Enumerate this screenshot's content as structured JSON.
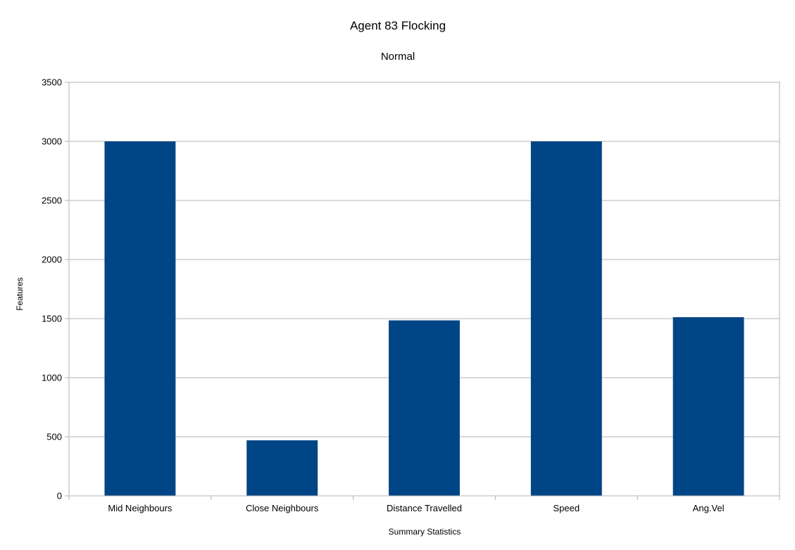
{
  "chart_data": {
    "type": "bar",
    "title": "Agent 83 Flocking",
    "subtitle": "Normal",
    "xlabel": "Summary Statistics",
    "ylabel": "Features",
    "categories": [
      "Mid Neighbours",
      "Close Neighbours",
      "Distance Travelled",
      "Speed",
      "Ang.Vel"
    ],
    "values": [
      3000,
      470,
      1485,
      3000,
      1512
    ],
    "ylim": [
      0,
      3500
    ],
    "yticks": [
      0,
      500,
      1000,
      1500,
      2000,
      2500,
      3000,
      3500
    ],
    "grid": true,
    "legend": "none",
    "bar_color": "#004586"
  }
}
